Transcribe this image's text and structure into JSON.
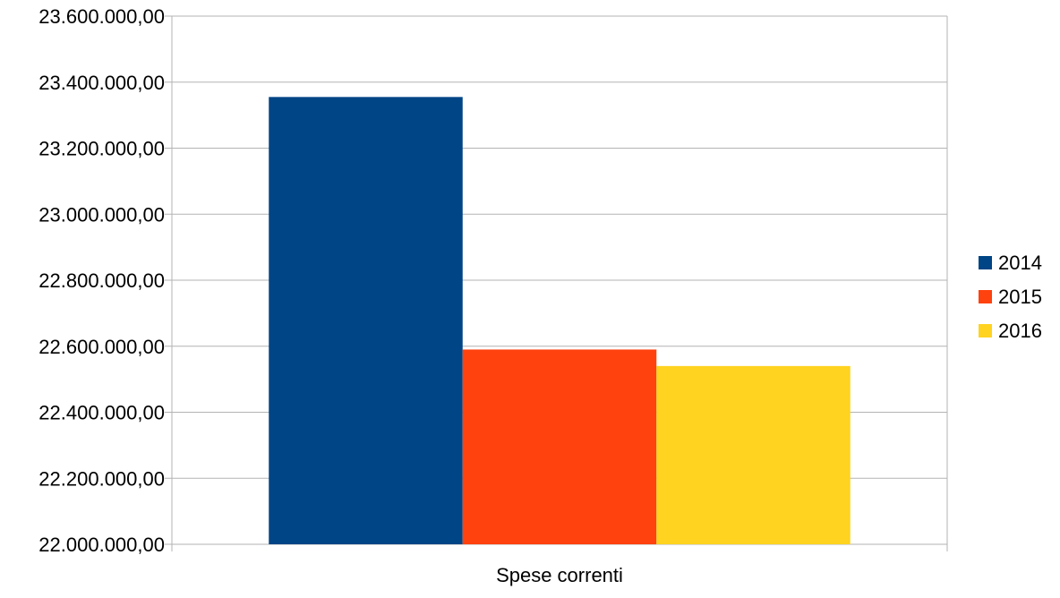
{
  "chart_data": {
    "type": "bar",
    "categories": [
      "Spese correnti"
    ],
    "series": [
      {
        "name": "2014",
        "values": [
          23355000
        ],
        "color": "#004586"
      },
      {
        "name": "2015",
        "values": [
          22590000
        ],
        "color": "#ff420e"
      },
      {
        "name": "2016",
        "values": [
          22540000
        ],
        "color": "#ffd320"
      }
    ],
    "ylim": [
      22000000,
      23600000
    ],
    "yticks": [
      "22.000.000,00",
      "22.200.000,00",
      "22.400.000,00",
      "22.600.000,00",
      "22.800.000,00",
      "23.000.000,00",
      "23.200.000,00",
      "23.400.000,00",
      "23.600.000,00"
    ],
    "grid": true,
    "legend_position": "right"
  }
}
